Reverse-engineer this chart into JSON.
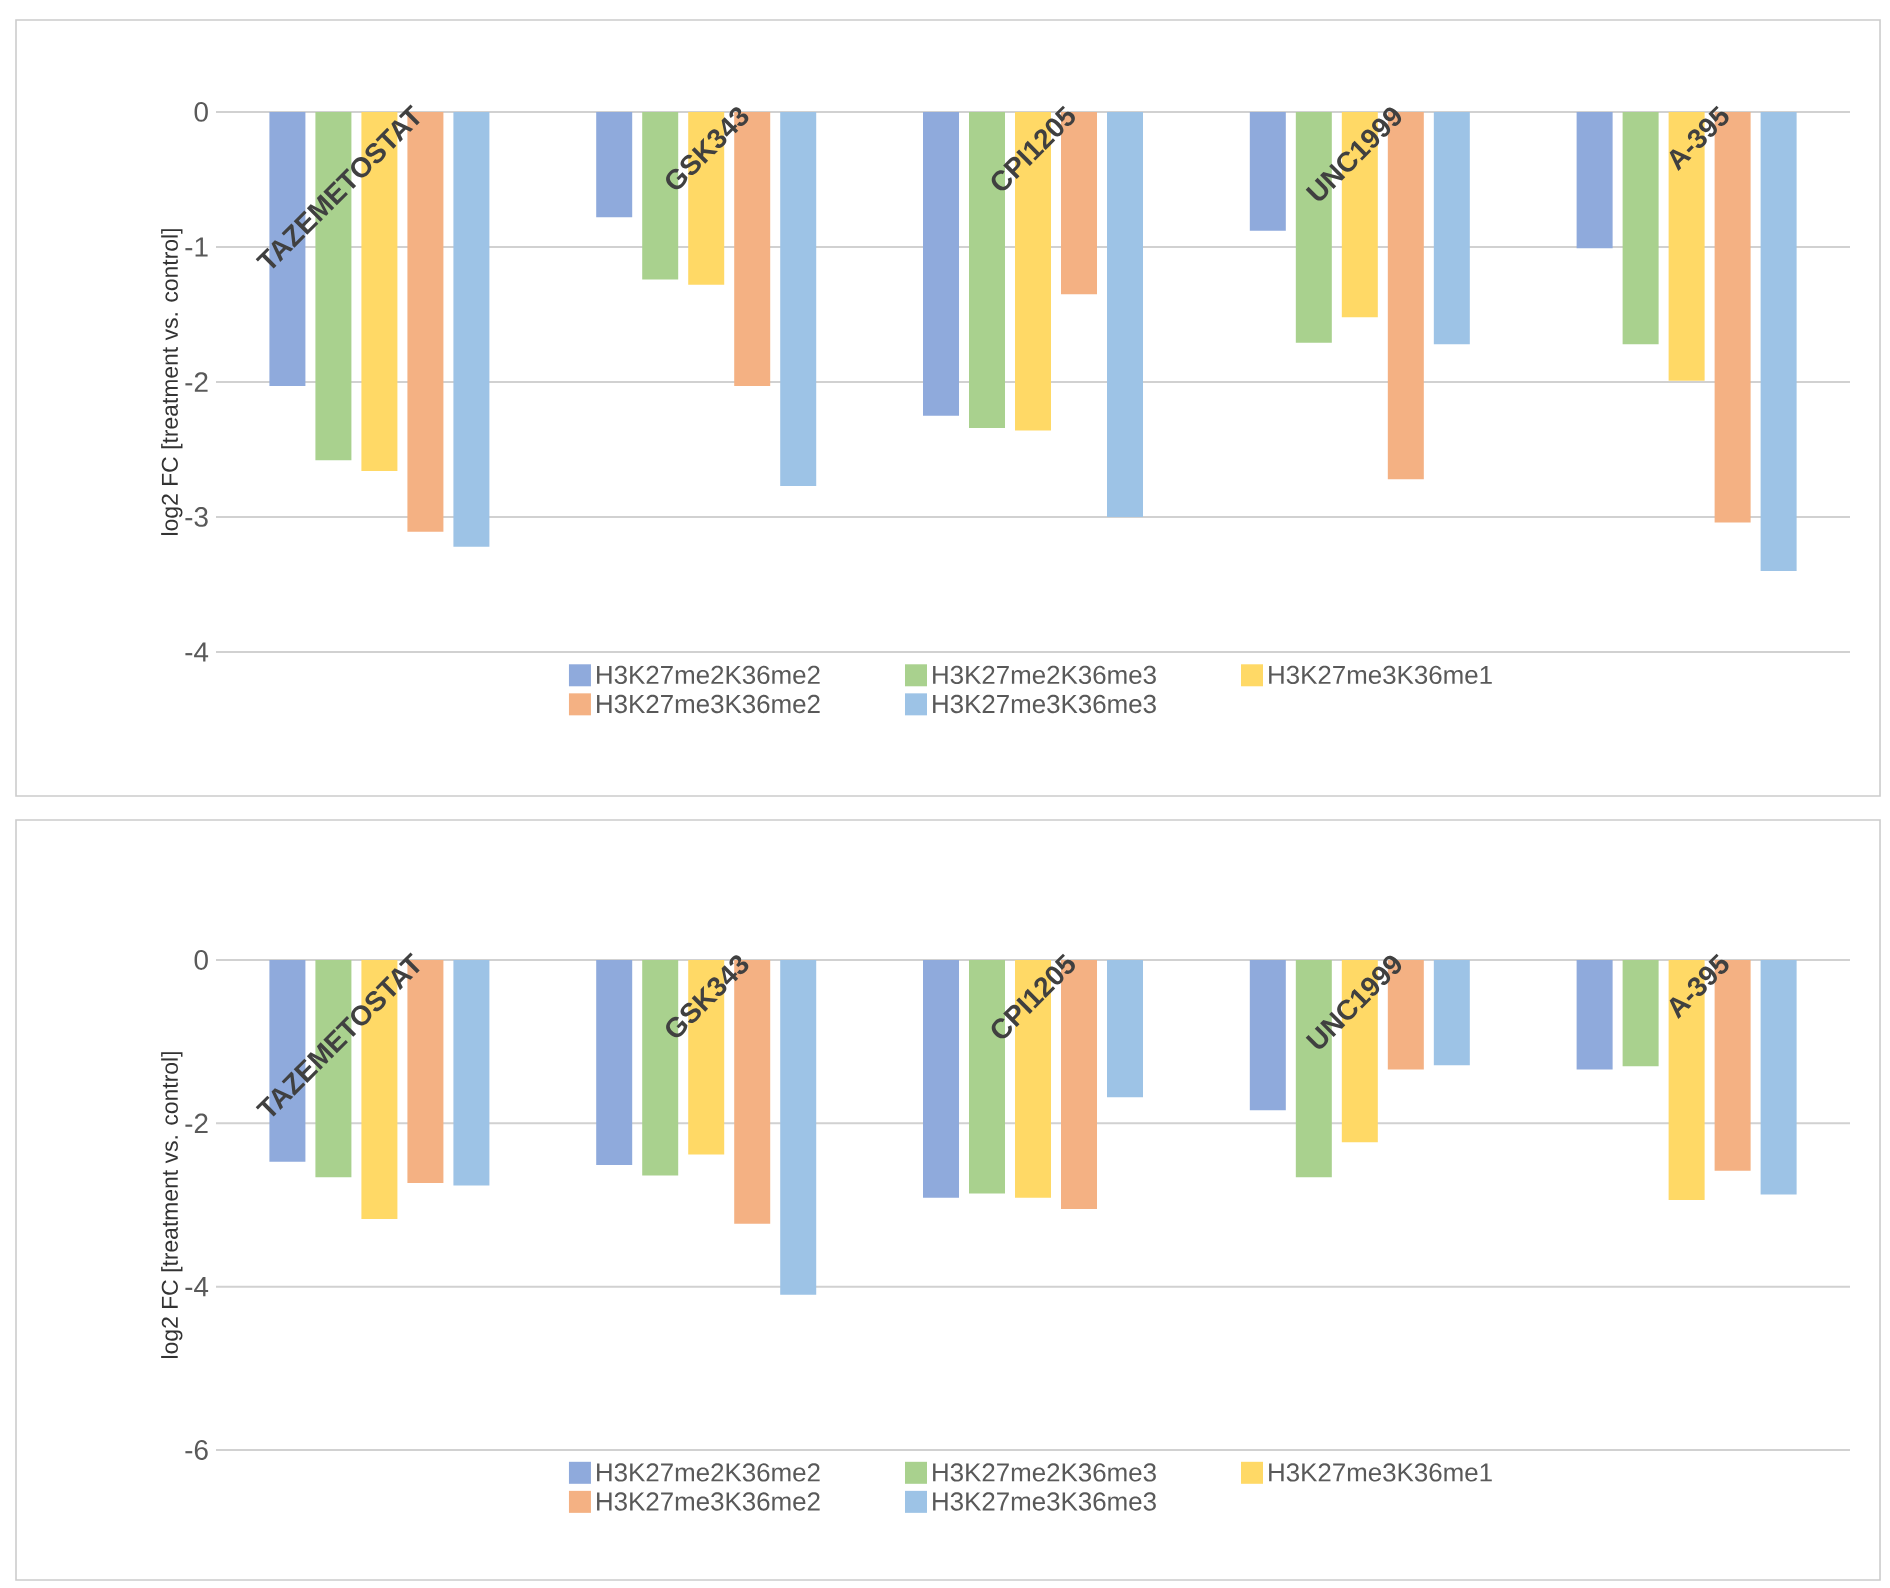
{
  "chart_data": [
    {
      "type": "bar",
      "ylabel": "log2 FC [treatment vs. control]",
      "categories": [
        "TAZEMETOSTAT",
        "GSK343",
        "CPI1205",
        "UNC1999",
        "A-395"
      ],
      "ylim": [
        -4,
        0
      ],
      "yticks": [
        -4,
        -3,
        -2,
        -1,
        0
      ],
      "grid": "y",
      "legend": "bottom",
      "series": [
        {
          "name": "H3K27me2K36me2",
          "color": "#8faadc",
          "values": [
            -2.03,
            -0.78,
            -2.25,
            -0.88,
            -1.01
          ]
        },
        {
          "name": "H3K27me2K36me3",
          "color": "#a9d18e",
          "values": [
            -2.58,
            -1.24,
            -2.34,
            -1.71,
            -1.72
          ]
        },
        {
          "name": "H3K27me3K36me1",
          "color": "#ffd966",
          "values": [
            -2.66,
            -1.28,
            -2.36,
            -1.52,
            -1.99
          ]
        },
        {
          "name": "H3K27me3K36me2",
          "color": "#f4b183",
          "values": [
            -3.11,
            -2.03,
            -1.35,
            -2.72,
            -3.04
          ]
        },
        {
          "name": "H3K27me3K36me3",
          "color": "#9dc3e6",
          "values": [
            -3.22,
            -2.77,
            -3.0,
            -1.72,
            -3.4
          ]
        }
      ]
    },
    {
      "type": "bar",
      "ylabel": "log2 FC [treatment vs. control]",
      "categories": [
        "TAZEMETOSTAT",
        "GSK343",
        "CPI1205",
        "UNC1999",
        "A-395"
      ],
      "ylim": [
        -6,
        0
      ],
      "yticks": [
        -6,
        -4,
        -2,
        0
      ],
      "grid": "y",
      "legend": "bottom",
      "series": [
        {
          "name": "H3K27me2K36me2",
          "color": "#8faadc",
          "values": [
            -2.47,
            -2.51,
            -2.91,
            -1.84,
            -1.34
          ]
        },
        {
          "name": "H3K27me2K36me3",
          "color": "#a9d18e",
          "values": [
            -2.66,
            -2.64,
            -2.86,
            -2.66,
            -1.3
          ]
        },
        {
          "name": "H3K27me3K36me1",
          "color": "#ffd966",
          "values": [
            -3.17,
            -2.38,
            -2.91,
            -2.23,
            -2.94
          ]
        },
        {
          "name": "H3K27me3K36me2",
          "color": "#f4b183",
          "values": [
            -2.73,
            -3.23,
            -3.05,
            -1.34,
            -2.58
          ]
        },
        {
          "name": "H3K27me3K36me3",
          "color": "#9dc3e6",
          "values": [
            -2.76,
            -4.1,
            -1.68,
            -1.29,
            -2.87
          ]
        }
      ]
    }
  ]
}
